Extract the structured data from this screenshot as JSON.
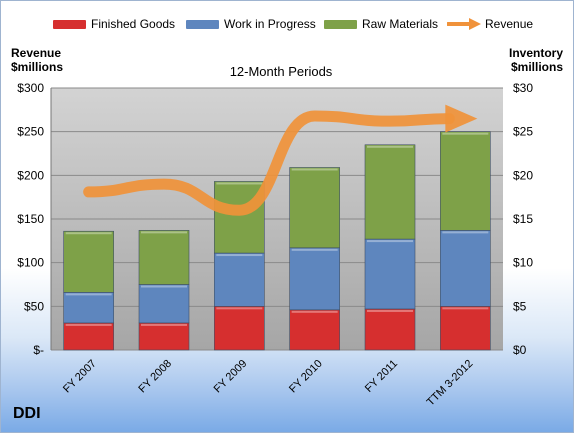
{
  "company": "DDI",
  "colors": {
    "finished": "#d62f2f",
    "wip": "#5e86be",
    "raw": "#7ea148",
    "revenue": "#f0923a"
  },
  "chart_data": {
    "type": "bar",
    "stacked": true,
    "title": "12-Month Periods",
    "y_left_label_line1": "Revenue",
    "y_left_label_line2": "$millions",
    "y_right_label_line1": "Inventory",
    "y_right_label_line2": "$millions",
    "categories": [
      "FY 2007",
      "FY 2008",
      "FY 2009",
      "FY 2010",
      "FY 2011",
      "TTM 3-2012"
    ],
    "series": [
      {
        "name": "Finished Goods",
        "axis": "right",
        "values": [
          3.1,
          3.1,
          5.0,
          4.6,
          4.7,
          5.0
        ]
      },
      {
        "name": "Work in Progress",
        "axis": "right",
        "values": [
          3.5,
          4.4,
          6.1,
          7.1,
          8.0,
          8.7
        ]
      },
      {
        "name": "Raw Materials",
        "axis": "right",
        "values": [
          7.0,
          6.2,
          8.2,
          9.2,
          10.8,
          11.3
        ]
      }
    ],
    "line_series": {
      "name": "Revenue",
      "axis": "left",
      "values": [
        181,
        190,
        160,
        268,
        262,
        265
      ]
    },
    "y_left_ticks": [
      "$-",
      "$50",
      "$100",
      "$150",
      "$200",
      "$250",
      "$300"
    ],
    "y_right_ticks": [
      "$0",
      "$5",
      "$10",
      "$15",
      "$20",
      "$25",
      "$30"
    ],
    "ylim_left": [
      0,
      300
    ],
    "ylim_right": [
      0,
      30
    ],
    "legend_position": "top",
    "grid": true
  }
}
